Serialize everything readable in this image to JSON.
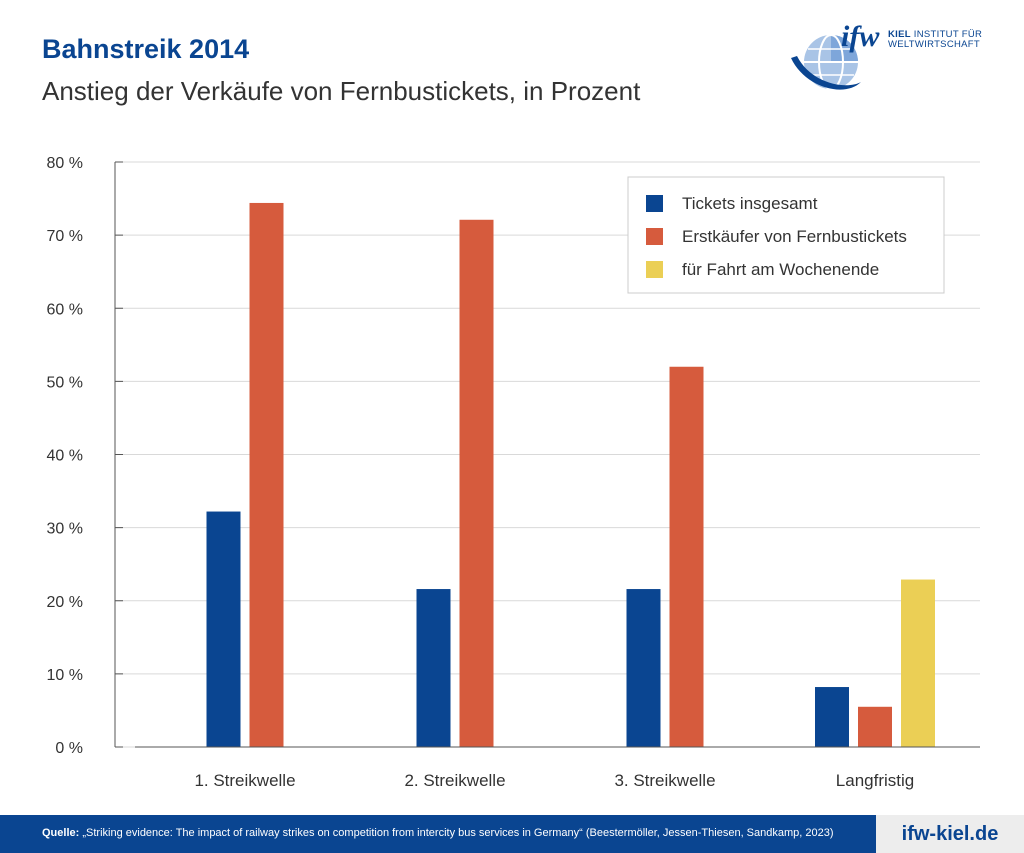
{
  "header": {
    "title": "Bahnstreik 2014",
    "subtitle": "Anstieg der Verkäufe von Fernbustickets, in Prozent"
  },
  "logo": {
    "wordmark": "ifw",
    "line1_strong": "KIEL",
    "line1_rest": "INSTITUT FÜR",
    "line2": "WELTWIRTSCHAFT",
    "icon": "globe-icon"
  },
  "chart_data": {
    "type": "bar",
    "categories": [
      "1. Streikwelle",
      "2. Streikwelle",
      "3. Streikwelle",
      "Langfristig"
    ],
    "series": [
      {
        "name": "Tickets insgesamt",
        "color": "#0a4591",
        "values": [
          32.2,
          21.6,
          21.6,
          8.2
        ]
      },
      {
        "name": "Erstkäufer von Fernbustickets",
        "color": "#d65b3d",
        "values": [
          74.4,
          72.1,
          52.0,
          5.5
        ]
      },
      {
        "name": "für Fahrt am Wochenende",
        "color": "#ebcf55",
        "values": [
          null,
          null,
          null,
          22.9
        ]
      }
    ],
    "yticks": [
      "0 %",
      "10 %",
      "20 %",
      "30 %",
      "40 %",
      "50 %",
      "60 %",
      "70 %",
      "80 %"
    ],
    "ylim": [
      0,
      80
    ],
    "grid": true,
    "legend_position": "top-right"
  },
  "footer": {
    "source_lead": "Quelle:",
    "source_text": " „Striking evidence: The impact of railway strikes on competition from intercity bus services in Germany“ (Beestermöller, Jessen-Thiesen, Sandkamp, 2023)",
    "site": "ifw-kiel.de"
  }
}
